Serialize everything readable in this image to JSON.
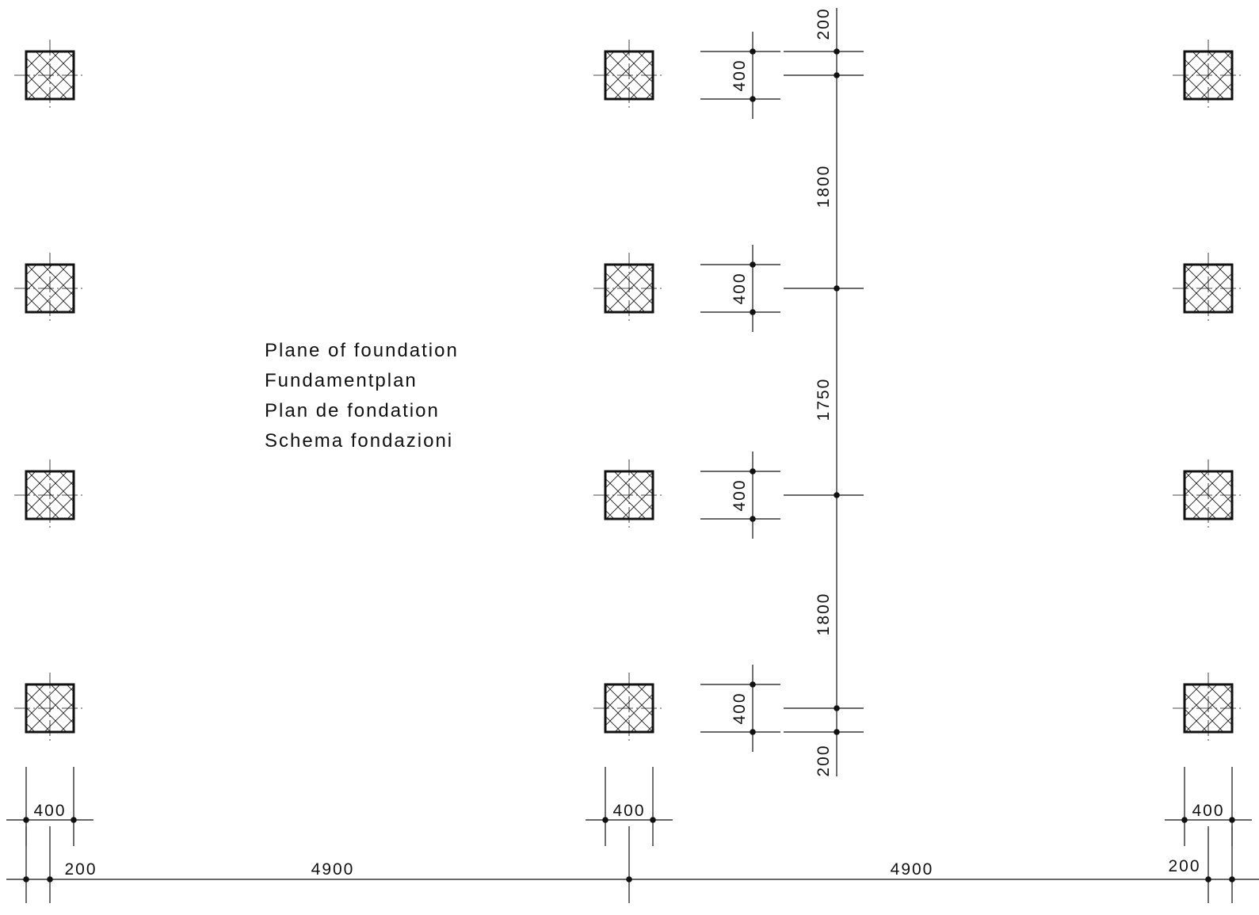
{
  "title_lines": [
    "Plane of foundation",
    "Fundamentplan",
    "Plan de fondation",
    "Schema fondazioni"
  ],
  "dimensions": {
    "vertical_outer": [
      "200",
      "1800",
      "1750",
      "1800",
      "200"
    ],
    "vertical_footing": [
      "400",
      "400",
      "400",
      "400"
    ],
    "horizontal_footing": [
      "400",
      "400",
      "400"
    ],
    "horizontal_outer": [
      "200",
      "4900",
      "4900",
      "200"
    ]
  },
  "footings": {
    "columns": 3,
    "rows": 4,
    "hatch": "cross-hatch"
  },
  "colors": {
    "ink": "#111111",
    "background": "#ffffff"
  }
}
